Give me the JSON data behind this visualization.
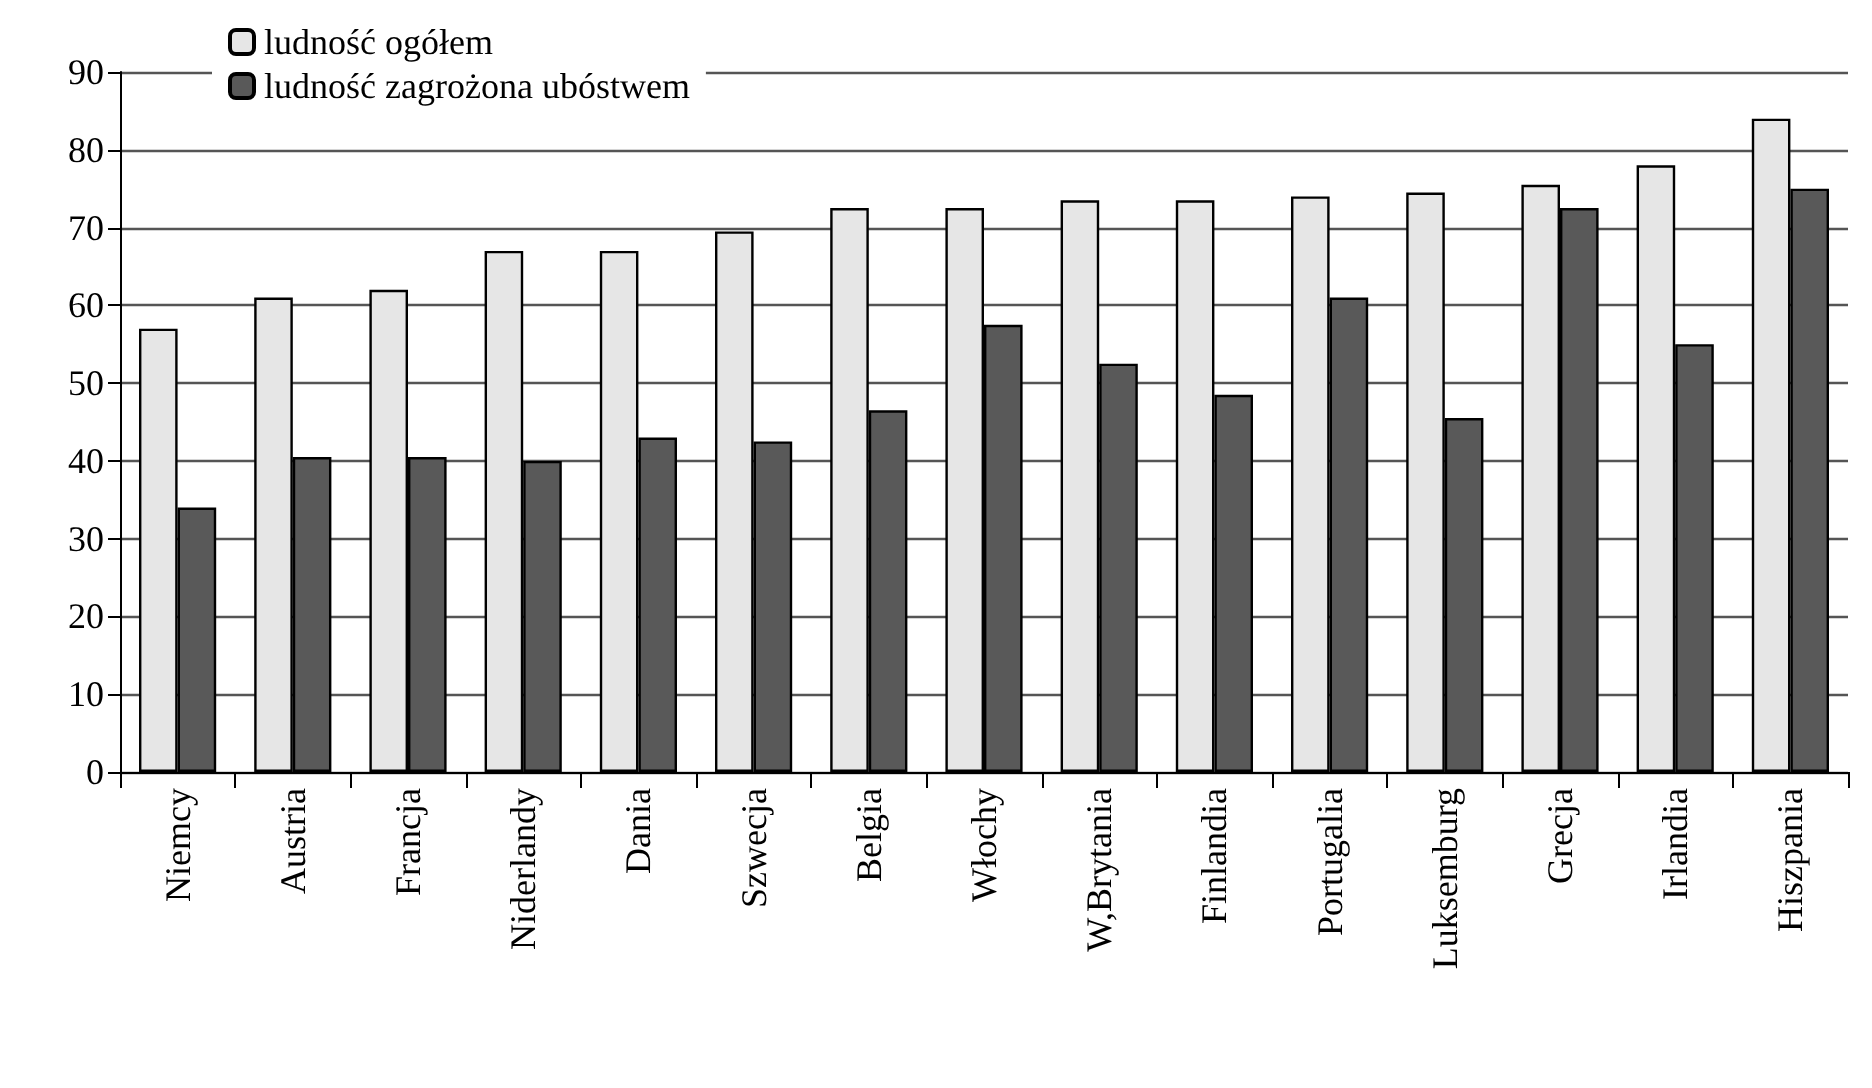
{
  "chart_data": {
    "type": "bar",
    "categories": [
      "Niemcy",
      "Austria",
      "Francja",
      "Niderlandy",
      "Dania",
      "Szwecja",
      "Belgia",
      "Włochy",
      "W,Brytania",
      "Finlandia",
      "Portugalia",
      "Luksemburg",
      "Grecja",
      "Irlandia",
      "Hiszpania"
    ],
    "series": [
      {
        "name": "ludność ogółem",
        "color": "#e6e6e6",
        "values": [
          57,
          61,
          62,
          67,
          67,
          69.5,
          72.5,
          72.5,
          73.5,
          73.5,
          74,
          74.5,
          75.5,
          78,
          84
        ]
      },
      {
        "name": "ludność zagrożona ubóstwem",
        "color": "#595959",
        "values": [
          34,
          40.5,
          40.5,
          40,
          43,
          42.5,
          46.5,
          57.5,
          52.5,
          48.5,
          61,
          45.5,
          72.5,
          55,
          75
        ]
      }
    ],
    "ylim": [
      0,
      90
    ],
    "yticks": [
      0,
      10,
      20,
      30,
      40,
      50,
      60,
      70,
      80,
      90
    ],
    "grid": "y",
    "legend": "top left"
  }
}
